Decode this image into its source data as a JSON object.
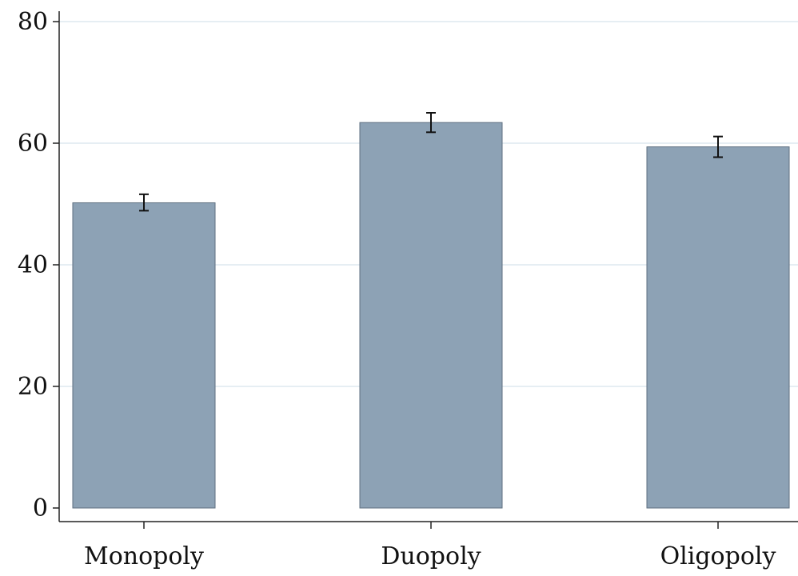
{
  "chart_data": {
    "type": "bar",
    "categories": [
      "Monopoly",
      "Duopoly",
      "Oligopoly"
    ],
    "values": [
      50.2,
      63.4,
      59.4
    ],
    "error_low": [
      48.9,
      61.8,
      57.7
    ],
    "error_high": [
      51.6,
      65.0,
      61.1
    ],
    "title": "",
    "xlabel": "",
    "ylabel": "",
    "ylim": [
      0,
      80
    ],
    "yticks": [
      0,
      20,
      40,
      60,
      80
    ],
    "grid": true,
    "colors": {
      "bar": "#8da2b5",
      "bar_edge": "#5e6f80",
      "grid": "#e6eef3",
      "axis": "#222222",
      "error_bar": "#111111"
    }
  }
}
